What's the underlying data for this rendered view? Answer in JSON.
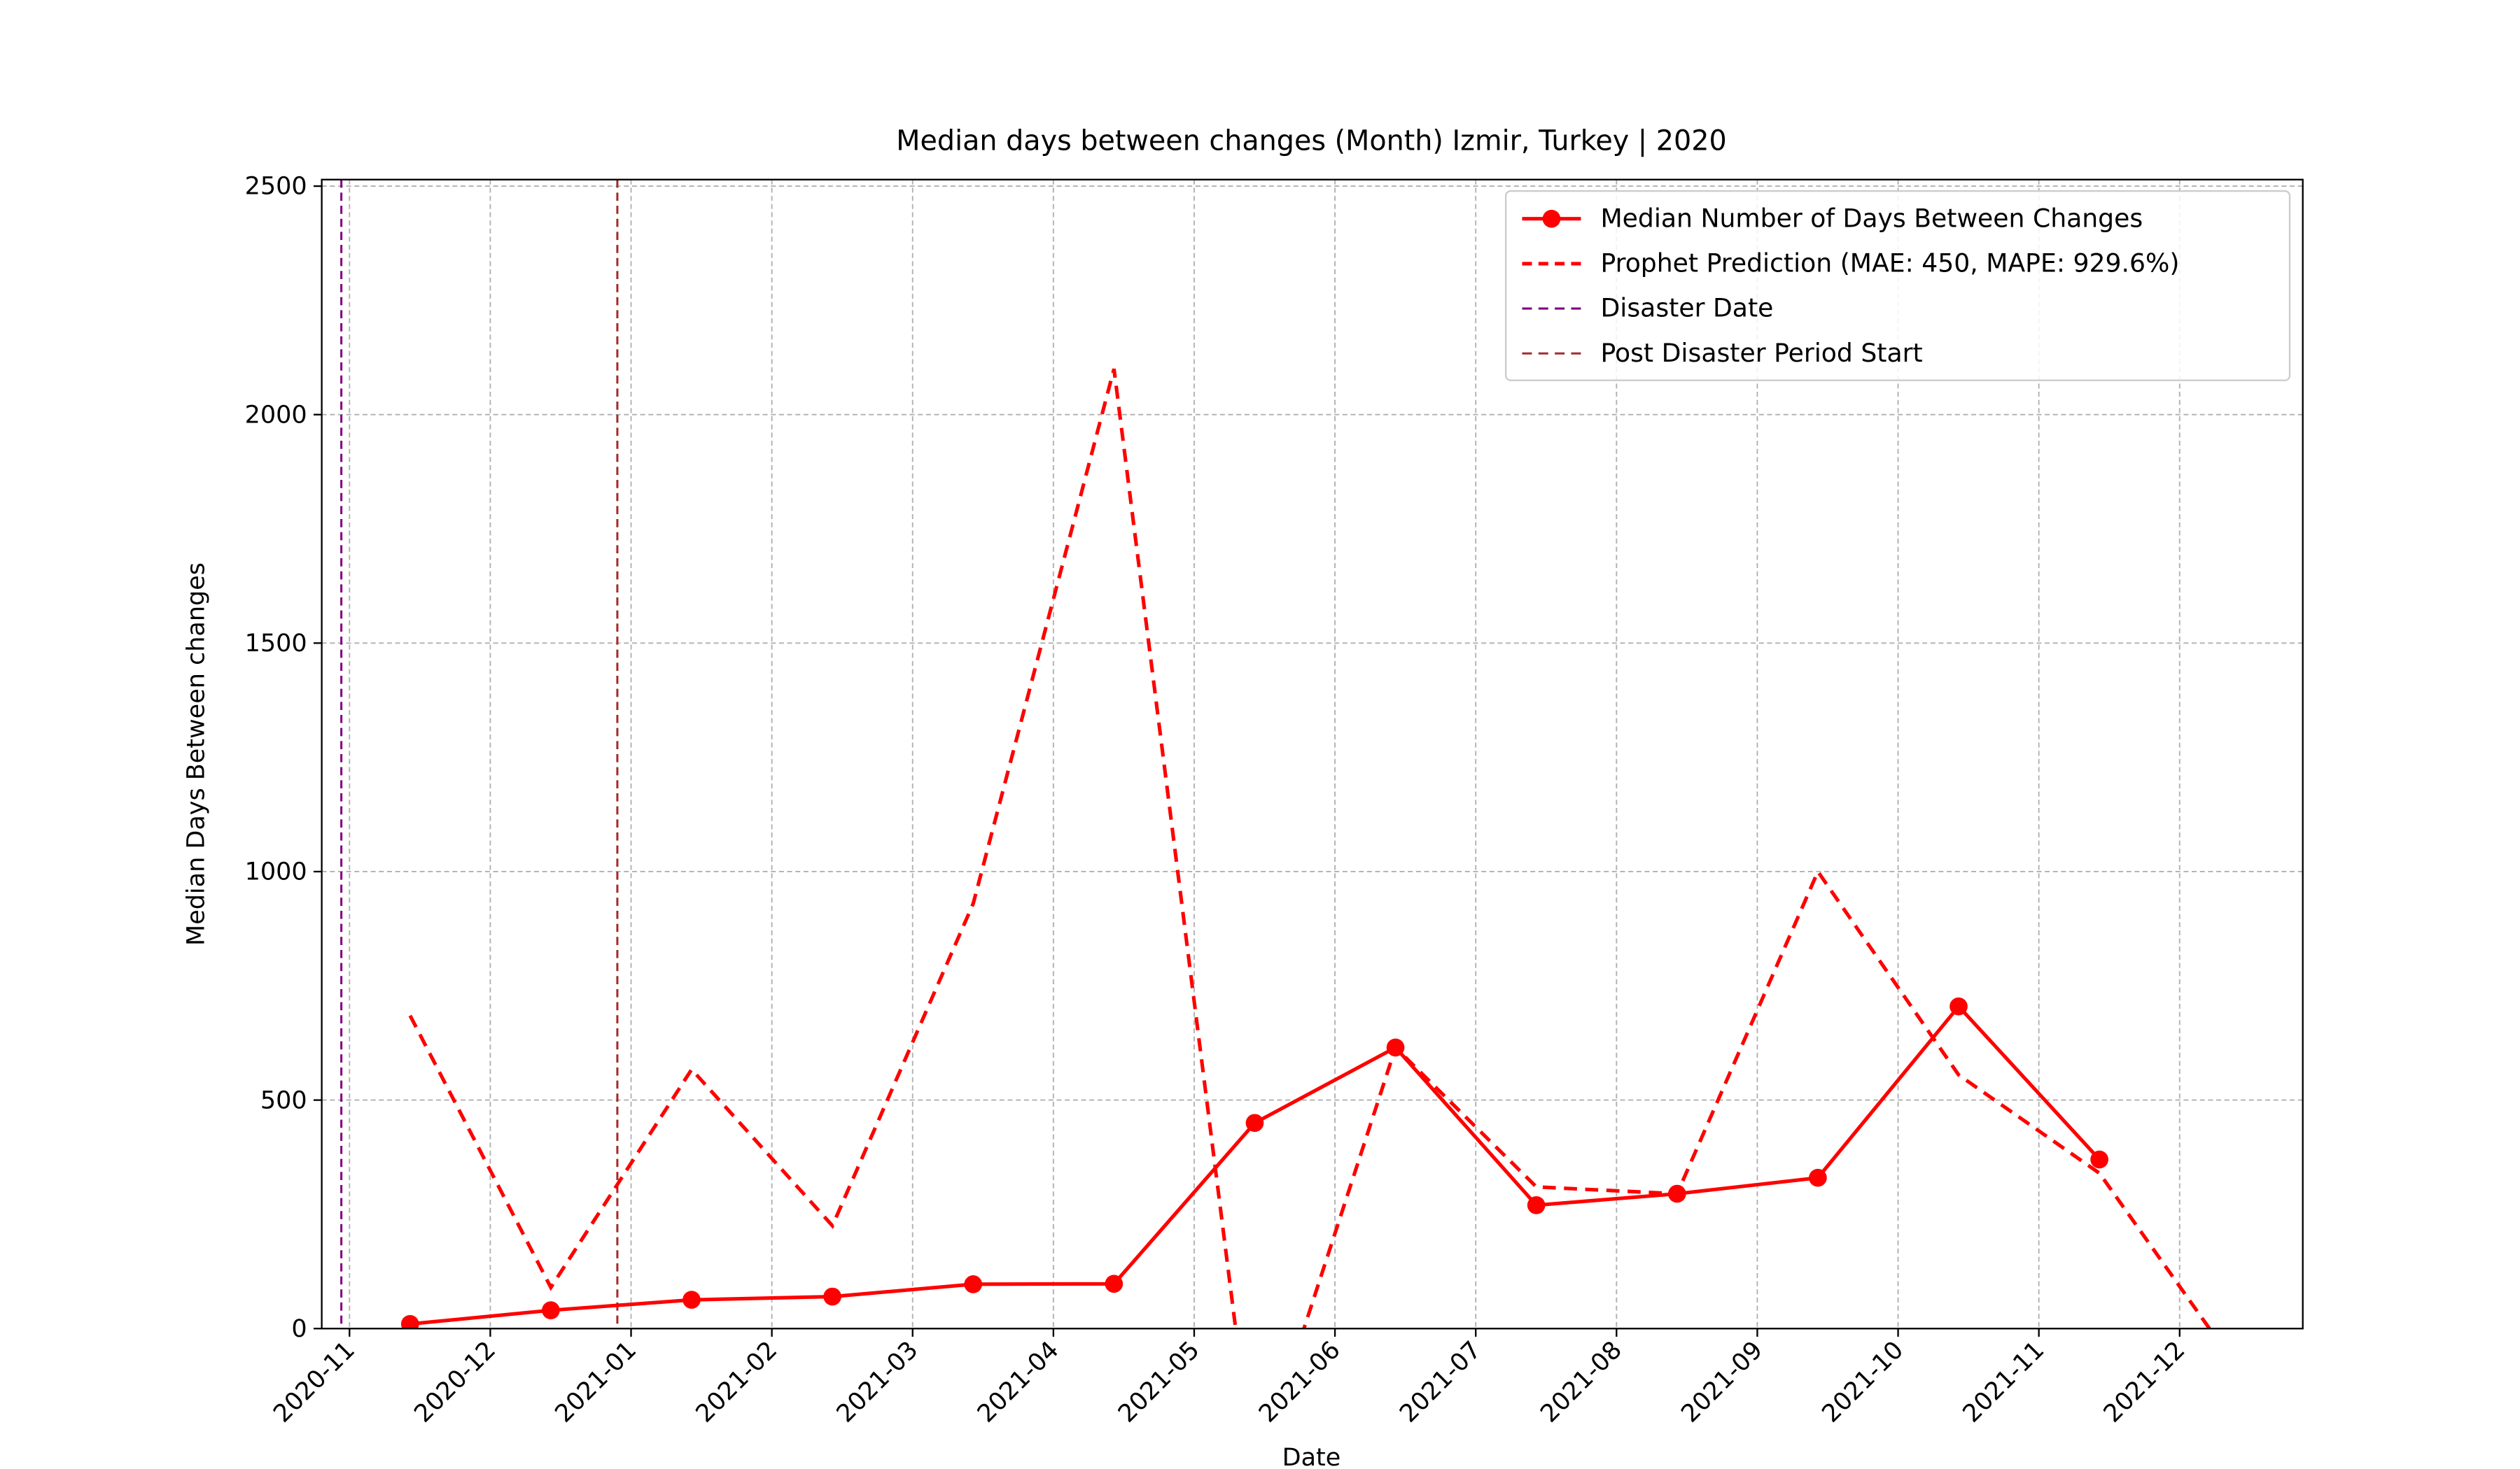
{
  "chart_data": {
    "type": "line",
    "title": "Median days between changes (Month) Izmir, Turkey | 2020",
    "x_label": "Date",
    "y_label": "Median Days Between changes",
    "x": [
      "2020-11",
      "2020-12",
      "2021-01",
      "2021-02",
      "2021-03",
      "2021-04",
      "2021-05",
      "2021-06",
      "2021-07",
      "2021-08",
      "2021-09",
      "2021-10",
      "2021-11",
      "2021-12"
    ],
    "series": [
      {
        "name": "Median Number of Days Between Changes",
        "color": "#ff0000",
        "style": "solid",
        "marker": true,
        "values": [
          10,
          40,
          63,
          70,
          97,
          98,
          450,
          615,
          270,
          295,
          330,
          705,
          370,
          null
        ]
      },
      {
        "name": "Prophet Prediction (MAE: 450, MAPE: 929.6%)",
        "color": "#ff0000",
        "style": "dashed",
        "marker": false,
        "values": [
          685,
          90,
          567,
          225,
          930,
          2100,
          -330,
          615,
          310,
          295,
          1000,
          555,
          340,
          -95
        ]
      }
    ],
    "reference_lines": [
      {
        "name": "Disaster Date",
        "color": "#800080"
      },
      {
        "name": "Post Disaster Period Start",
        "color": "#a52a2a"
      }
    ],
    "xticks": [
      "2020-11",
      "2020-12",
      "2021-01",
      "2021-02",
      "2021-03",
      "2021-04",
      "2021-05",
      "2021-06",
      "2021-07",
      "2021-08",
      "2021-09",
      "2021-10",
      "2021-11",
      "2021-12"
    ],
    "ylim": [
      0,
      2500
    ],
    "yticks": [
      0,
      500,
      1000,
      1500,
      2000,
      2500
    ],
    "grid": true,
    "legend": "upper right"
  }
}
